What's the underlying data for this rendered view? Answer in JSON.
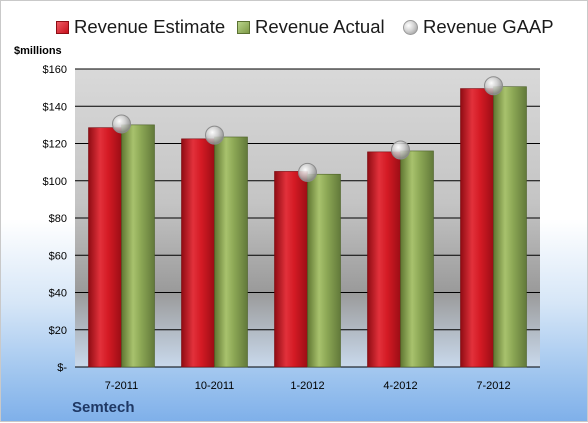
{
  "chart_data": {
    "type": "bar",
    "ylabel": "$millions",
    "categories": [
      "7-2011",
      "10-2011",
      "1-2012",
      "4-2012",
      "7-2012"
    ],
    "series": [
      {
        "name": "Revenue Estimate",
        "values": [
          128.5,
          122.5,
          105,
          115.5,
          149.5
        ],
        "color": "#d4141e"
      },
      {
        "name": "Revenue Actual",
        "values": [
          130,
          123.5,
          103.5,
          116,
          150.5
        ],
        "color": "#8ba654"
      },
      {
        "name": "Revenue GAAP",
        "values": [
          130.5,
          124.5,
          104.5,
          116.5,
          151
        ],
        "color": "#bdbdbd"
      }
    ],
    "ylim": [
      0,
      160
    ],
    "yticks": [
      0,
      20,
      40,
      60,
      80,
      100,
      120,
      140,
      160
    ],
    "ytick_labels": [
      "$-",
      "$20",
      "$40",
      "$60",
      "$80",
      "$100",
      "$120",
      "$140",
      "$160"
    ],
    "grid": true,
    "legend": "top",
    "company": "Semtech"
  }
}
